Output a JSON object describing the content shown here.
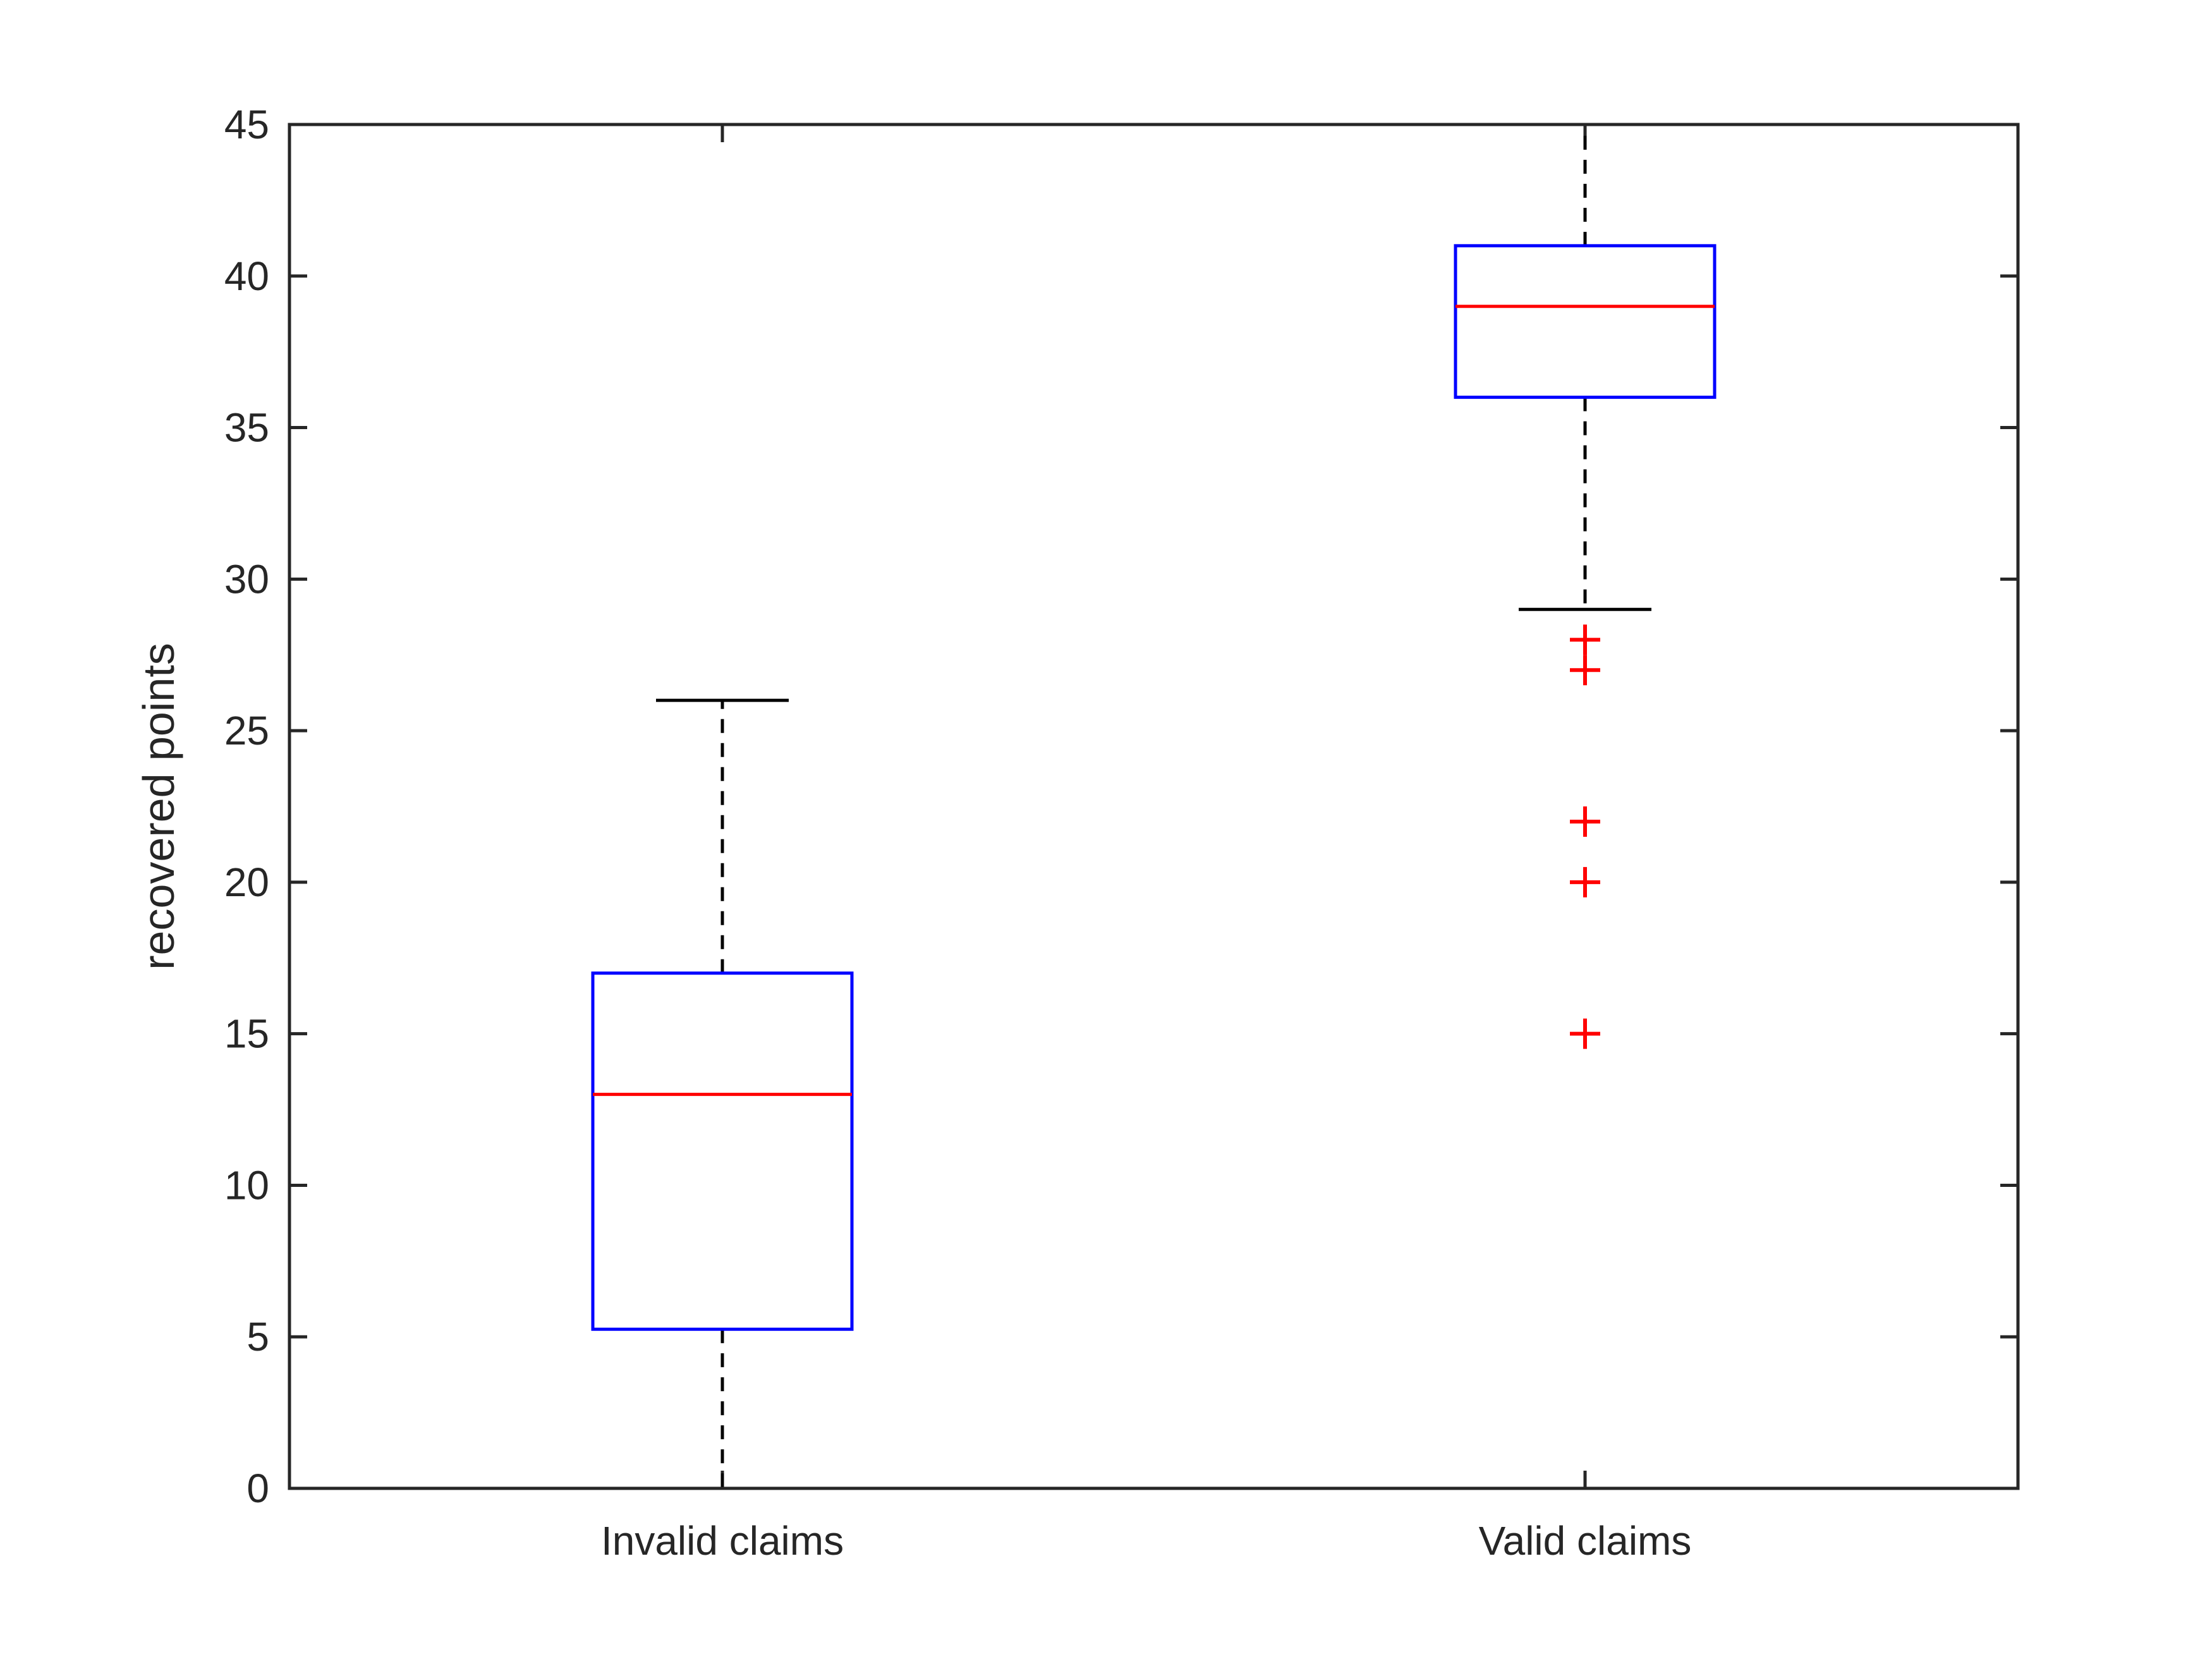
{
  "chart_data": {
    "type": "boxplot",
    "title": "",
    "xlabel": "",
    "ylabel": "recovered points",
    "ylim": [
      0,
      45
    ],
    "yticks": [
      0,
      5,
      10,
      15,
      20,
      25,
      30,
      35,
      40,
      45
    ],
    "ytick_labels": [
      "0",
      "5",
      "10",
      "15",
      "20",
      "25",
      "30",
      "35",
      "40",
      "45"
    ],
    "categories": [
      "Invalid claims",
      "Valid claims"
    ],
    "boxes": [
      {
        "name": "Invalid claims",
        "whisker_low": 0,
        "q1": 5.25,
        "median": 13,
        "q3": 17,
        "whisker_high": 26,
        "outliers": []
      },
      {
        "name": "Valid claims",
        "whisker_low": 29,
        "q1": 36,
        "median": 39,
        "q3": 41,
        "whisker_high": 45,
        "outliers": [
          15,
          20,
          22,
          27,
          28
        ]
      }
    ],
    "colors": {
      "box": "#0000ff",
      "median": "#ff0000",
      "whisker": "#000000",
      "outlier": "#ff0000",
      "axis": "#262626"
    }
  }
}
